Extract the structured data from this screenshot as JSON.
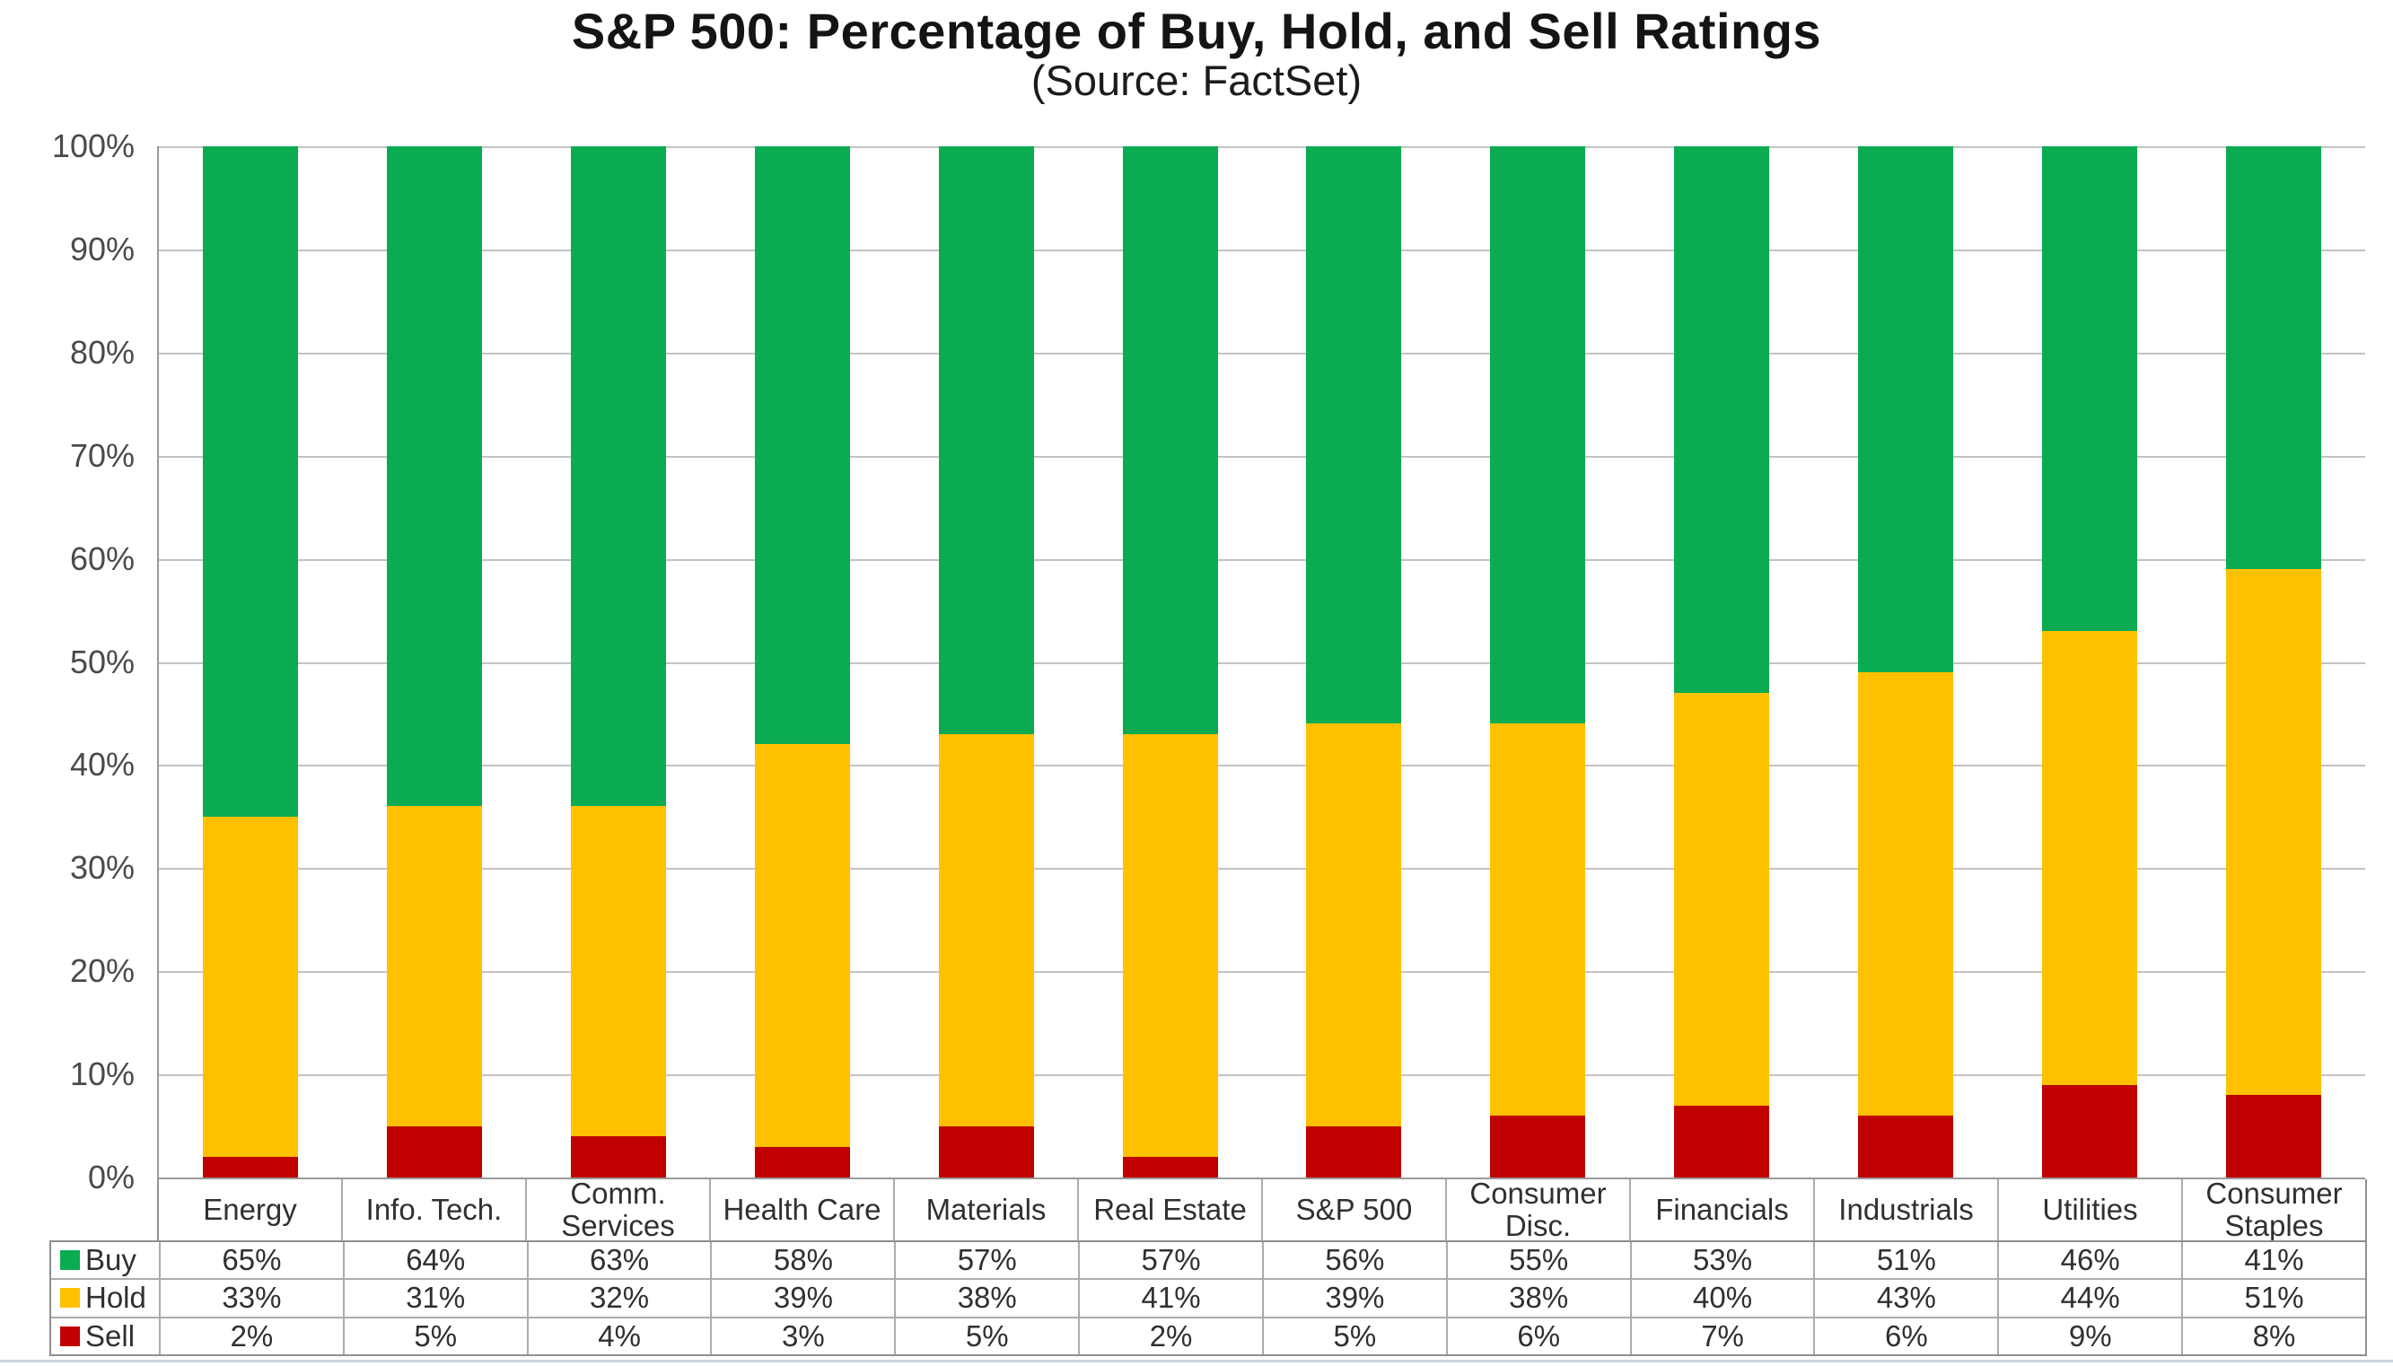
{
  "chart_data": {
    "type": "bar",
    "stacked": true,
    "normalized_to_100": true,
    "title": "S&P 500: Percentage of Buy, Hold, and Sell Ratings",
    "subtitle": "(Source: FactSet)",
    "categories": [
      "Energy",
      "Info. Tech.",
      "Comm. Services",
      "Health Care",
      "Materials",
      "Real Estate",
      "S&P 500",
      "Consumer Disc.",
      "Financials",
      "Industrials",
      "Utilities",
      "Consumer Staples"
    ],
    "series": [
      {
        "name": "Buy",
        "color": "#0bab52",
        "values": [
          65,
          64,
          63,
          58,
          57,
          57,
          56,
          55,
          53,
          51,
          46,
          41
        ]
      },
      {
        "name": "Hold",
        "color": "#ffc000",
        "values": [
          33,
          31,
          32,
          39,
          38,
          41,
          39,
          38,
          40,
          43,
          44,
          51
        ]
      },
      {
        "name": "Sell",
        "color": "#c00000",
        "values": [
          2,
          5,
          4,
          3,
          5,
          2,
          5,
          6,
          7,
          6,
          9,
          8
        ]
      }
    ],
    "ylabel": "",
    "xlabel": "",
    "ylim": [
      0,
      100
    ],
    "y_ticks": [
      "100%",
      "90%",
      "80%",
      "70%",
      "60%",
      "50%",
      "40%",
      "30%",
      "20%",
      "10%",
      "0%"
    ],
    "grid": true,
    "legend_position": "data-table-left-column",
    "data_table_shown": true
  },
  "colors": {
    "gridline": "#c3c3c3",
    "axis_line": "#9a9a9a",
    "table_outer_border": "#8f8f8f",
    "table_inner_border": "#ababab",
    "text": "#303030",
    "tick_text": "#4a4a4a",
    "bottom_divider": "#ccd6df",
    "background": "#ffffff"
  }
}
